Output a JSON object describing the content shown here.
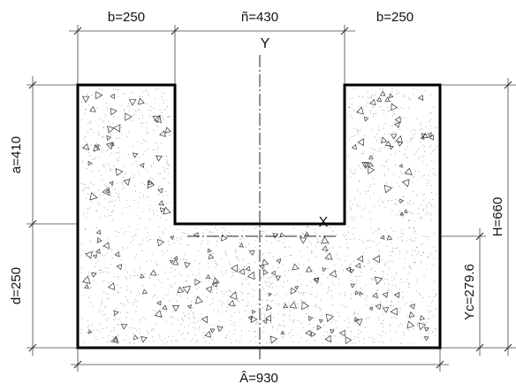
{
  "dimensions": {
    "top_left_width": "b=250",
    "top_middle_width": "ñ=430",
    "top_right_width": "b=250",
    "left_upper_height": "a=410",
    "left_lower_height": "d=250",
    "right_total_height": "H=660",
    "right_centroid_height": "Yc=279.6",
    "bottom_total_width": "Â=930"
  },
  "axes": {
    "y_label": "Y",
    "x_label": "X"
  }
}
